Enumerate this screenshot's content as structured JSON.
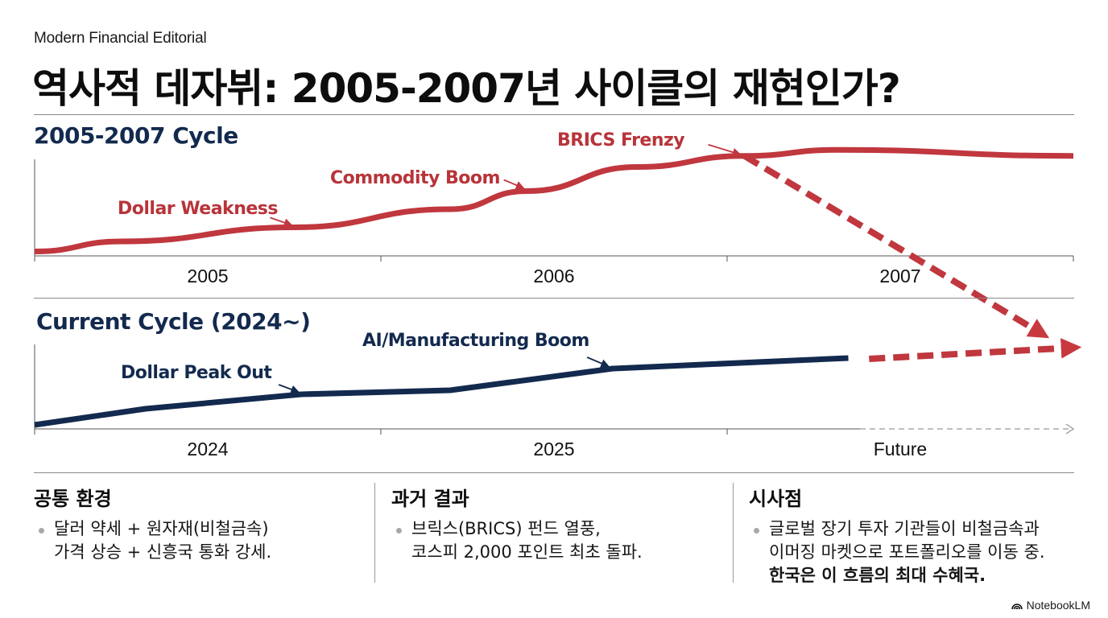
{
  "header": {
    "kicker": "Modern Financial Editorial",
    "title": "역사적 데자뷔: 2005-2007년 사이클의 재현인가?"
  },
  "colors": {
    "past_line": "#c0373e",
    "current_line": "#132a4e",
    "axis": "#555555",
    "future_axis": "#999999"
  },
  "chart_data": [
    {
      "type": "line",
      "title": "2005-2007 Cycle",
      "x_tick_labels": [
        "2005",
        "2006",
        "2007"
      ],
      "x_range": [
        2004.5,
        2007.5
      ],
      "y_range": [
        0,
        100
      ],
      "series": [
        {
          "name": "2005-2007 cycle",
          "style": "solid",
          "x": [
            2004.5,
            2004.75,
            2005.25,
            2005.7,
            2005.92,
            2006.24,
            2006.55,
            2006.82,
            2007.5
          ],
          "y": [
            2,
            12,
            26,
            44,
            62,
            86,
            97,
            103,
            97
          ]
        },
        {
          "name": "post-peak decline",
          "style": "dashed-arrow",
          "x": [
            2006.55,
            2007.41
          ],
          "y": [
            97,
            -80
          ]
        }
      ],
      "annotations": [
        {
          "text": "Dollar Weakness",
          "x": 2005.25,
          "y": 26
        },
        {
          "text": "Commodity Boom",
          "x": 2005.92,
          "y": 62
        },
        {
          "text": "BRICS Frenzy",
          "x": 2006.55,
          "y": 97
        }
      ]
    },
    {
      "type": "line",
      "title": "Current Cycle (2024~)",
      "x_tick_labels": [
        "2024",
        "2025",
        "Future"
      ],
      "x_range": [
        2023.5,
        2026.5
      ],
      "y_range": [
        0,
        100
      ],
      "series": [
        {
          "name": "current cycle",
          "style": "solid",
          "x": [
            2023.5,
            2023.82,
            2024.27,
            2024.7,
            2025.17,
            2025.85
          ],
          "y": [
            2,
            22,
            40,
            45,
            72,
            85
          ]
        },
        {
          "name": "projected",
          "style": "dashed-arrow",
          "x": [
            2025.91,
            2026.5
          ],
          "y": [
            84,
            98
          ]
        }
      ],
      "annotations": [
        {
          "text": "Dollar Peak Out",
          "x": 2024.27,
          "y": 40
        },
        {
          "text": "AI/Manufacturing Boom",
          "x": 2025.17,
          "y": 72
        }
      ]
    }
  ],
  "columns": [
    {
      "heading": "공통 환경",
      "lines": [
        "달러 약세 + 원자재(비철금속)",
        "가격 상승 + 신흥국 통화 강세."
      ],
      "strong": ""
    },
    {
      "heading": "과거 결과",
      "lines": [
        "브릭스(BRICS) 펀드 열풍,",
        "코스피 2,000 포인트 최초 돌파."
      ],
      "strong": ""
    },
    {
      "heading": "시사점",
      "lines": [
        "글로벌 장기 투자 기관들이 비철금속과",
        "이머징 마켓으로 포트폴리오를 이동 중."
      ],
      "strong": "한국은 이 흐름의 최대 수혜국."
    }
  ],
  "brand": {
    "icon": "notebooklm-logo-icon",
    "label": "NotebookLM"
  }
}
